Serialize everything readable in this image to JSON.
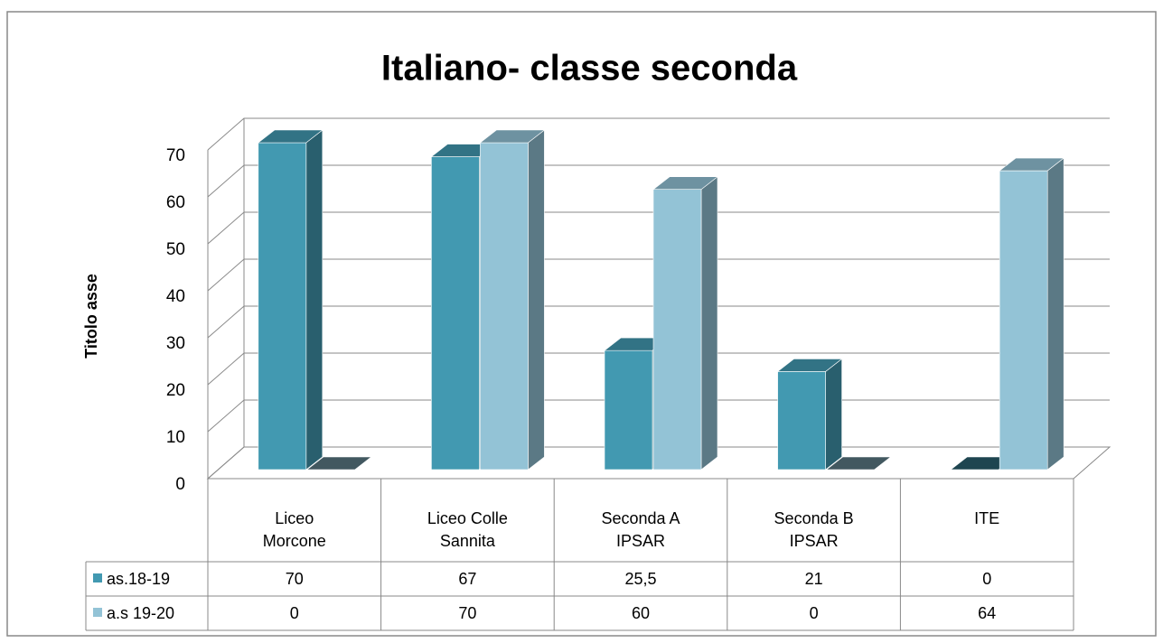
{
  "chart_data": {
    "type": "bar3d",
    "title": "Italiano- classe seconda",
    "y_label": "Titolo asse",
    "categories": [
      "Liceo Morcone",
      "Liceo Colle Sannita",
      "Seconda A IPSAR",
      "Seconda B IPSAR",
      "ITE"
    ],
    "series": [
      {
        "name": "as.18-19",
        "color": "#4299b1",
        "values": [
          70,
          67,
          25.5,
          21,
          0
        ],
        "value_labels": [
          "70",
          "67",
          "25,5",
          "21",
          "0"
        ]
      },
      {
        "name": "a.s 19-20",
        "color": "#93c3d6",
        "values": [
          0,
          70,
          60,
          0,
          64
        ]
      }
    ],
    "ylim": [
      0,
      70
    ],
    "yticks": [
      0,
      10,
      20,
      30,
      40,
      50,
      60,
      70
    ],
    "grid": true,
    "data_table": true
  }
}
